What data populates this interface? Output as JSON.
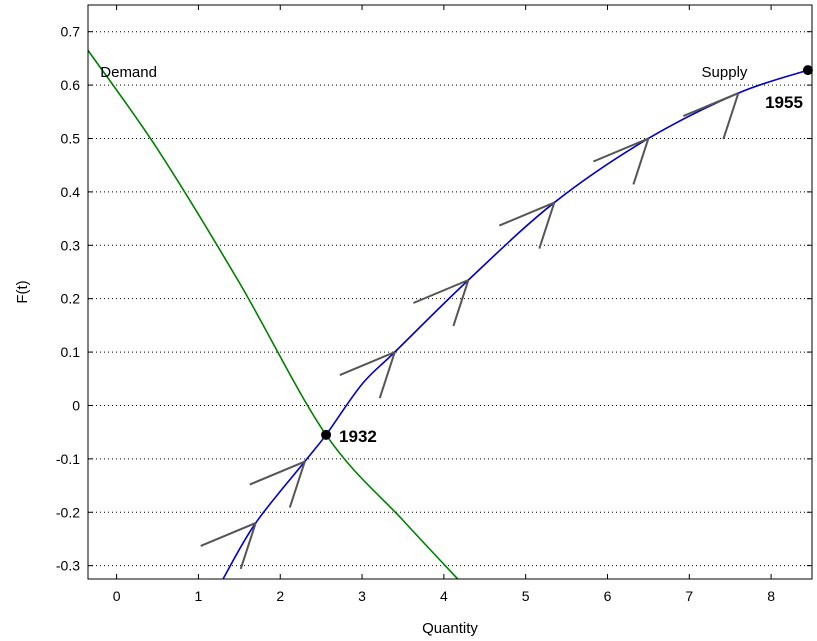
{
  "chart_data": {
    "type": "line",
    "xlabel": "Quantity",
    "ylabel": "F(t)",
    "xlim": [
      -0.35,
      8.5
    ],
    "ylim": [
      -0.325,
      0.75
    ],
    "xticks": [
      0,
      1,
      2,
      3,
      4,
      5,
      6,
      7,
      8
    ],
    "xtick_labels": [
      "0",
      "1",
      "2",
      "3",
      "4",
      "5",
      "6",
      "7",
      "8"
    ],
    "yticks": [
      -0.3,
      -0.2,
      -0.1,
      0,
      0.1,
      0.2,
      0.3,
      0.4,
      0.5,
      0.6,
      0.7
    ],
    "ytick_labels": [
      "-0.3",
      "-0.2",
      "-0.1",
      "0",
      "0.1",
      "0.2",
      "0.3",
      "0.4",
      "0.5",
      "0.6",
      "0.7"
    ],
    "grid": "horizontal-dotted",
    "series": [
      {
        "name": "Demand",
        "color": "#008000",
        "x": [
          -0.35,
          0.5,
          1.5,
          2.56,
          3.5,
          4.17
        ],
        "y": [
          0.665,
          0.48,
          0.23,
          -0.055,
          -0.215,
          -0.325
        ]
      },
      {
        "name": "Supply",
        "color": "#0000c8",
        "x": [
          1.3,
          1.7,
          2.3,
          2.56,
          3.0,
          3.4,
          4.3,
          5.35,
          6.5,
          7.6,
          8.45
        ],
        "y": [
          -0.325,
          -0.22,
          -0.105,
          -0.055,
          0.04,
          0.1,
          0.235,
          0.38,
          0.5,
          0.585,
          0.628
        ]
      }
    ],
    "arrows": [
      {
        "x": 1.7,
        "y": -0.22
      },
      {
        "x": 2.3,
        "y": -0.105
      },
      {
        "x": 3.4,
        "y": 0.1
      },
      {
        "x": 4.3,
        "y": 0.235
      },
      {
        "x": 5.35,
        "y": 0.38
      },
      {
        "x": 6.5,
        "y": 0.5
      },
      {
        "x": 7.6,
        "y": 0.585
      }
    ],
    "arrow_color": "#555555",
    "points": [
      {
        "label": "1932",
        "x": 2.56,
        "y": -0.055
      },
      {
        "label": "1955",
        "x": 8.45,
        "y": 0.628
      }
    ],
    "annotations": [
      {
        "text": "Demand",
        "x": -0.2,
        "y": 0.615
      },
      {
        "text": "Supply",
        "x": 7.15,
        "y": 0.615
      }
    ]
  }
}
